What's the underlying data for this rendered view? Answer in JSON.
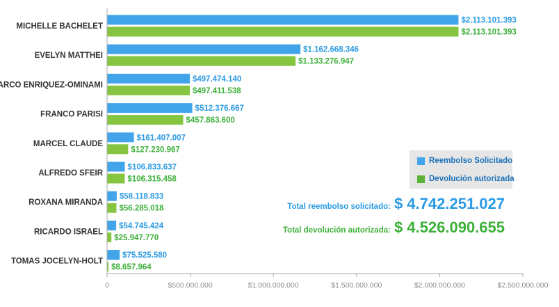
{
  "colors": {
    "solicitado": "#42a5ea",
    "autorizada": "#86c540",
    "solicitado_text": "#2b9be3",
    "autorizada_text": "#3db03a",
    "axis": "#aaaaaa"
  },
  "chart_data": {
    "type": "bar",
    "orientation": "horizontal",
    "categories": [
      "MICHELLE BACHELET",
      "EVELYN MATTHEI",
      "MARCO ENRIQUEZ-OMINAMI",
      "FRANCO PARISI",
      "MARCEL CLAUDE",
      "ALFREDO SFEIR",
      "ROXANA MIRANDA",
      "RICARDO ISRAEL",
      "TOMAS JOCELYN-HOLT"
    ],
    "series": [
      {
        "name": "Reembolso Solicitado",
        "color": "#42a5ea",
        "values": [
          2113101393,
          1162668346,
          497474140,
          512376667,
          161407007,
          106833637,
          58118833,
          54745424,
          75525580
        ],
        "labels": [
          "$2.113.101.393",
          "$1.162.668.346",
          "$497.474.140",
          "$512.376.667",
          "$161.407.007",
          "$106.833.637",
          "$58.118.833",
          "$54.745.424",
          "$75.525.580"
        ]
      },
      {
        "name": "Devolución autorizada",
        "color": "#86c540",
        "values": [
          2113101393,
          1133276947,
          497411538,
          457863600,
          127230967,
          106315458,
          56285018,
          25947770,
          8657964
        ],
        "labels": [
          "$2.113.101.393",
          "$1.133.276.947",
          "$497.411.538",
          "$457.863.600",
          "$127.230.967",
          "$106.315.458",
          "$56.285.018",
          "$25.947.770",
          "$8.657.964"
        ]
      }
    ],
    "xlim": [
      0,
      2500000000
    ],
    "xticks": [
      0,
      500000000,
      1000000000,
      1500000000,
      2000000000,
      2500000000
    ],
    "xtick_labels": [
      "0",
      "$500.000.000",
      "$1.000.000.000",
      "$1.500.000.000",
      "$2.000.000.000",
      "$2.500.000.000"
    ],
    "grid": false,
    "legend_position": "right"
  },
  "totals": {
    "solicitado_label": "Total reembolso solicitado:",
    "solicitado_value": "$ 4.742.251.027",
    "autorizada_label": "Total devolución autorizada:",
    "autorizada_value": "$ 4.526.090.655"
  }
}
